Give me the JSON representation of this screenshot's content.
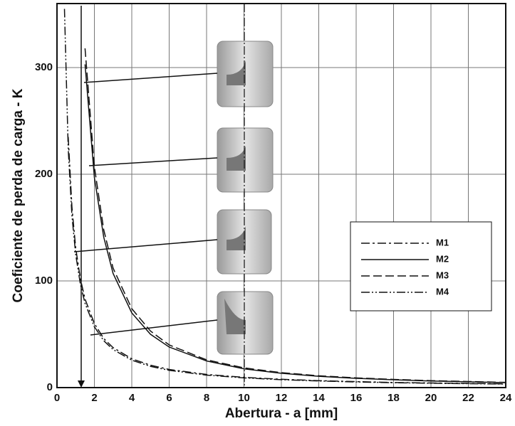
{
  "chart_data": {
    "type": "line",
    "xlabel": "Abertura - a [mm]",
    "ylabel": "Coeficiente de perda de carga - K",
    "x": [
      0.4,
      0.6,
      0.8,
      1,
      1.25,
      1.5,
      2,
      2.5,
      3,
      4,
      5,
      6,
      8,
      10,
      12,
      14,
      16,
      18,
      20,
      22,
      24
    ],
    "series": [
      {
        "name": "M1",
        "color": "#111111",
        "dash": "dashdot",
        "values": [
          null,
          235,
          169,
          131,
          102,
          83,
          60,
          46,
          37.5,
          27,
          21,
          17,
          12.3,
          9.6,
          7.8,
          6.5,
          5.6,
          4.8,
          4.3,
          3.9,
          3.5
        ]
      },
      {
        "name": "M2",
        "color": "#111111",
        "dash": "solid",
        "values": [
          null,
          null,
          null,
          null,
          null,
          303,
          197,
          141,
          107,
          70,
          50,
          38,
          25,
          17.6,
          13.4,
          10.6,
          8.7,
          7.3,
          6.2,
          5.4,
          4.7
        ]
      },
      {
        "name": "M3",
        "color": "#111111",
        "dash": "dashed",
        "values": [
          null,
          null,
          null,
          null,
          null,
          318,
          207,
          148,
          112,
          74,
          53,
          40,
          26,
          18.5,
          14,
          11.1,
          9.1,
          7.7,
          6.5,
          5.7,
          4.9
        ]
      },
      {
        "name": "M4",
        "color": "#111111",
        "dash": "dashdotdot",
        "values": [
          355,
          224,
          161,
          125,
          97,
          79,
          57,
          44,
          35.7,
          25.7,
          19.9,
          16.2,
          11.7,
          9.1,
          7.4,
          6.2,
          5.3,
          4.6,
          4.1,
          3.7,
          3.3
        ]
      }
    ],
    "xlim": [
      0,
      24
    ],
    "xticks": [
      0,
      2,
      4,
      6,
      8,
      10,
      12,
      14,
      16,
      18,
      20,
      22,
      24
    ],
    "ylim": [
      0,
      360
    ],
    "yticks": [
      0,
      100,
      200,
      300
    ],
    "grid": true,
    "legend": "center-right"
  }
}
